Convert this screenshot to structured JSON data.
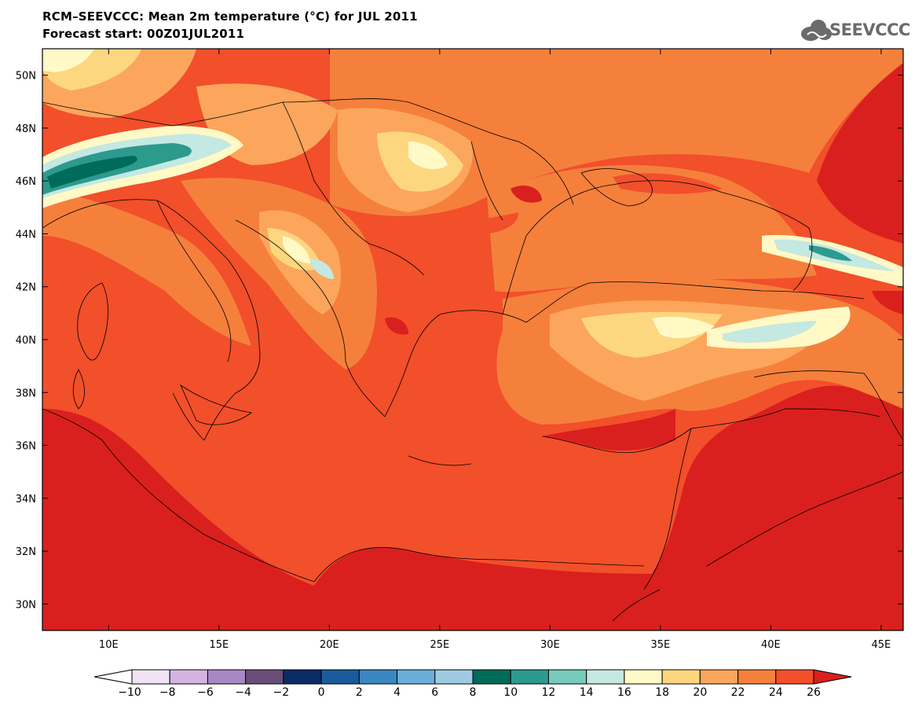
{
  "header": {
    "title_line1": "RCM–SEEVCCC: Mean 2m temperature (°C) for JUL 2011",
    "title_line2": "Forecast start: 00Z01JUL2011",
    "logo_text": "SEEVCCC"
  },
  "map": {
    "lat_labels": [
      "50N",
      "48N",
      "46N",
      "44N",
      "42N",
      "40N",
      "38N",
      "36N",
      "34N",
      "32N",
      "30N"
    ],
    "lon_labels": [
      "10E",
      "15E",
      "20E",
      "25E",
      "30E",
      "35E",
      "40E",
      "45E"
    ],
    "lon_range": [
      7,
      46
    ],
    "lat_range": [
      29,
      51
    ]
  },
  "colorbar": {
    "labels": [
      "-10",
      "-8",
      "-6",
      "-4",
      "-2",
      "0",
      "2",
      "4",
      "6",
      "8",
      "10",
      "12",
      "14",
      "16",
      "18",
      "20",
      "22",
      "24",
      "26"
    ],
    "colors": [
      "#ffffff",
      "#efe3f5",
      "#d6b4e2",
      "#a888c4",
      "#6a4e79",
      "#0c2c66",
      "#1a5b9d",
      "#3a86c1",
      "#6aafd9",
      "#9ecbe2",
      "#006b5a",
      "#2d9a8e",
      "#76cbbc",
      "#c4e8e2",
      "#fff9c6",
      "#fdd680",
      "#fba65c",
      "#f5803c",
      "#f24f2b",
      "#d9201e"
    ]
  }
}
